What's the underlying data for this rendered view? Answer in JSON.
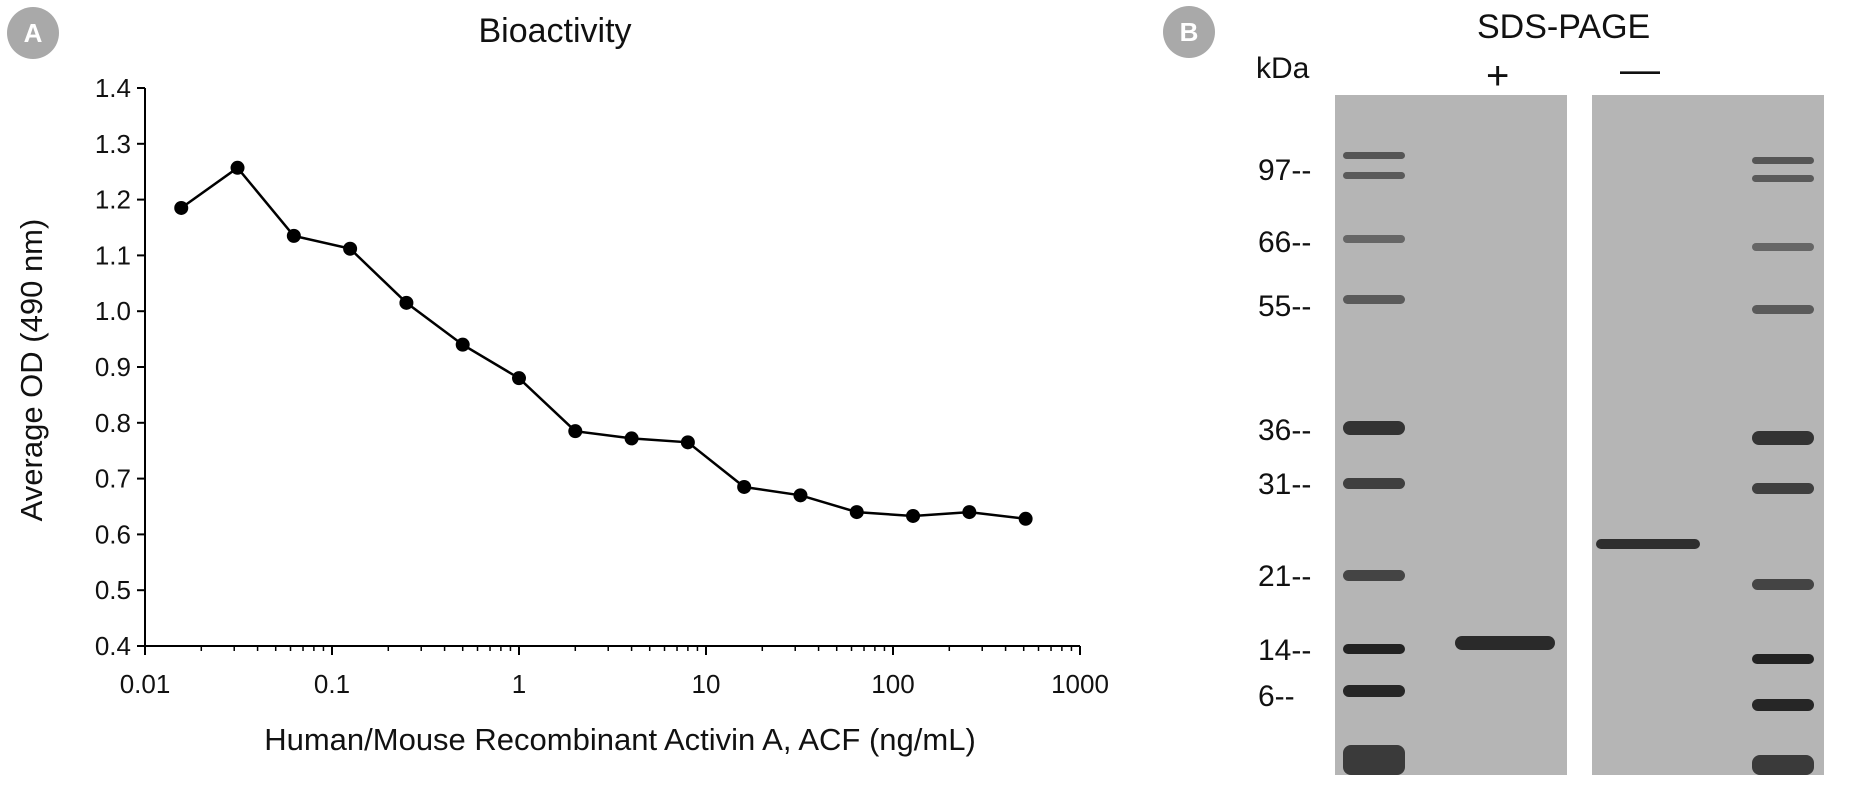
{
  "panel_a": {
    "badge": "A",
    "chart_data": {
      "type": "line",
      "title": "Bioactivity",
      "xlabel": "Human/Mouse Recombinant Activin A, ACF (ng/mL)",
      "ylabel": "Average OD (490 nm)",
      "x_scale": "log",
      "xlim": [
        0.01,
        1000
      ],
      "ylim": [
        0.4,
        1.4
      ],
      "x_ticks": [
        "0.01",
        "0.1",
        "1",
        "10",
        "100",
        "1000"
      ],
      "y_ticks": [
        "0.4",
        "0.5",
        "0.6",
        "0.7",
        "0.8",
        "0.9",
        "1.0",
        "1.1",
        "1.2",
        "1.3",
        "1.4"
      ],
      "grid": false,
      "series": [
        {
          "x": [
            0.015625,
            0.03125,
            0.0625,
            0.125,
            0.25,
            0.5,
            1,
            2,
            4,
            8,
            16,
            32,
            64,
            128,
            256,
            512
          ],
          "y": [
            1.185,
            1.257,
            1.135,
            1.112,
            1.015,
            0.94,
            0.88,
            0.785,
            0.772,
            0.765,
            0.685,
            0.67,
            0.64,
            0.633,
            0.64,
            0.628
          ]
        }
      ]
    }
  },
  "panel_b": {
    "badge": "B",
    "title": "SDS-PAGE",
    "unit_label": "kDa",
    "lane_plus": "+",
    "lane_minus": "—",
    "markers": [
      "97--",
      "66--",
      "55--",
      "36--",
      "31--",
      "21--",
      "14--",
      "6--"
    ]
  }
}
